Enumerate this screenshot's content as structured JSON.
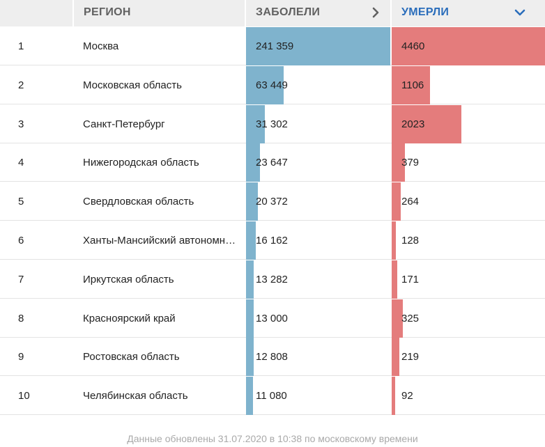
{
  "table": {
    "header": {
      "region": "РЕГИОН",
      "sick": "ЗАБОЛЕЛИ",
      "dead": "УМЕРЛИ"
    },
    "colors": {
      "sick_bar": "#7fb3cd",
      "dead_bar": "#e47c7c",
      "active_header": "#2a6dbb"
    },
    "sort": {
      "column": "dead",
      "direction": "descending-icon"
    },
    "rows": [
      {
        "num": "1",
        "region": "Москва",
        "sick": "241 359",
        "dead": "4460",
        "sick_value": 241359,
        "dead_value": 4460
      },
      {
        "num": "2",
        "region": "Московская область",
        "sick": "63 449",
        "dead": "1106",
        "sick_value": 63449,
        "dead_value": 1106
      },
      {
        "num": "3",
        "region": "Санкт-Петербург",
        "sick": "31 302",
        "dead": "2023",
        "sick_value": 31302,
        "dead_value": 2023
      },
      {
        "num": "4",
        "region": "Нижегородская область",
        "sick": "23 647",
        "dead": "379",
        "sick_value": 23647,
        "dead_value": 379
      },
      {
        "num": "5",
        "region": "Свердловская область",
        "sick": "20 372",
        "dead": "264",
        "sick_value": 20372,
        "dead_value": 264
      },
      {
        "num": "6",
        "region": "Ханты-Мансийский автономный округ — Югра",
        "sick": "16 162",
        "dead": "128",
        "sick_value": 16162,
        "dead_value": 128
      },
      {
        "num": "7",
        "region": "Иркутская область",
        "sick": "13 282",
        "dead": "171",
        "sick_value": 13282,
        "dead_value": 171
      },
      {
        "num": "8",
        "region": "Красноярский край",
        "sick": "13 000",
        "dead": "325",
        "sick_value": 13000,
        "dead_value": 325
      },
      {
        "num": "9",
        "region": "Ростовская область",
        "sick": "12 808",
        "dead": "219",
        "sick_value": 12808,
        "dead_value": 219
      },
      {
        "num": "10",
        "region": "Челябинская область",
        "sick": "11 080",
        "dead": "92",
        "sick_value": 11080,
        "dead_value": 92
      }
    ]
  },
  "footer": {
    "text": "Данные обновлены 31.07.2020 в 10:38 по московскому времени"
  }
}
